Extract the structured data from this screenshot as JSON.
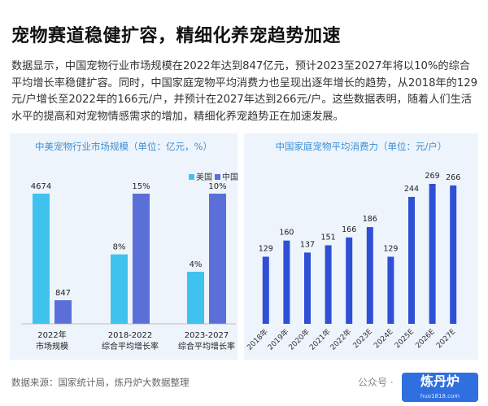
{
  "header": {
    "title": "宠物赛道稳健扩容，精细化养宠趋势加速",
    "paragraph": "数据显示，中国宠物行业市场规模在2022年达到847亿元，预计2023至2027年将以10%的综合平均增长率稳健扩容。同时，中国家庭宠物平均消费力也呈现出逐年增长的趋势，从2018年的129元/户增长至2022年的166元/户，并预计在2027年达到266元/户。这些数据表明，随着人们生活水平的提高和对宠物情感需求的增加，精细化养宠趋势正在加速发展。"
  },
  "chart_data": [
    {
      "type": "grouped-bar",
      "title": "中美宠物行业市场规模（单位：亿元，%）",
      "categories": [
        [
          "2022年",
          "市场规模"
        ],
        [
          "2018-2022",
          "综合平均增长率"
        ],
        [
          "2023-2027",
          "综合平均增长率"
        ]
      ],
      "series": [
        {
          "name": "美国",
          "color": "#3fc3ee",
          "values": [
            4674,
            8,
            4
          ],
          "value_labels": [
            "4674",
            "8%",
            "4%"
          ]
        },
        {
          "name": "中国",
          "color": "#5b6fd9",
          "values": [
            847,
            15,
            10
          ],
          "value_labels": [
            "847",
            "15%",
            "10%"
          ]
        }
      ],
      "legend": "top-right"
    },
    {
      "type": "bar",
      "title": "中国家庭宠物平均消费力（单位：元/户）",
      "categories": [
        "2018年",
        "2019年",
        "2020年",
        "2021年",
        "2022年",
        "2023E",
        "2024E",
        "2025E",
        "2026E",
        "2027E"
      ],
      "values": [
        129,
        160,
        137,
        151,
        166,
        186,
        129,
        244,
        269,
        266
      ],
      "color": "#2e4fd6"
    }
  ],
  "footer": {
    "source": "数据来源：国家统计局，炼丹炉大数据整理",
    "watermark": "公众号 ·",
    "logo": "炼丹炉",
    "site": "huo1818.com"
  }
}
